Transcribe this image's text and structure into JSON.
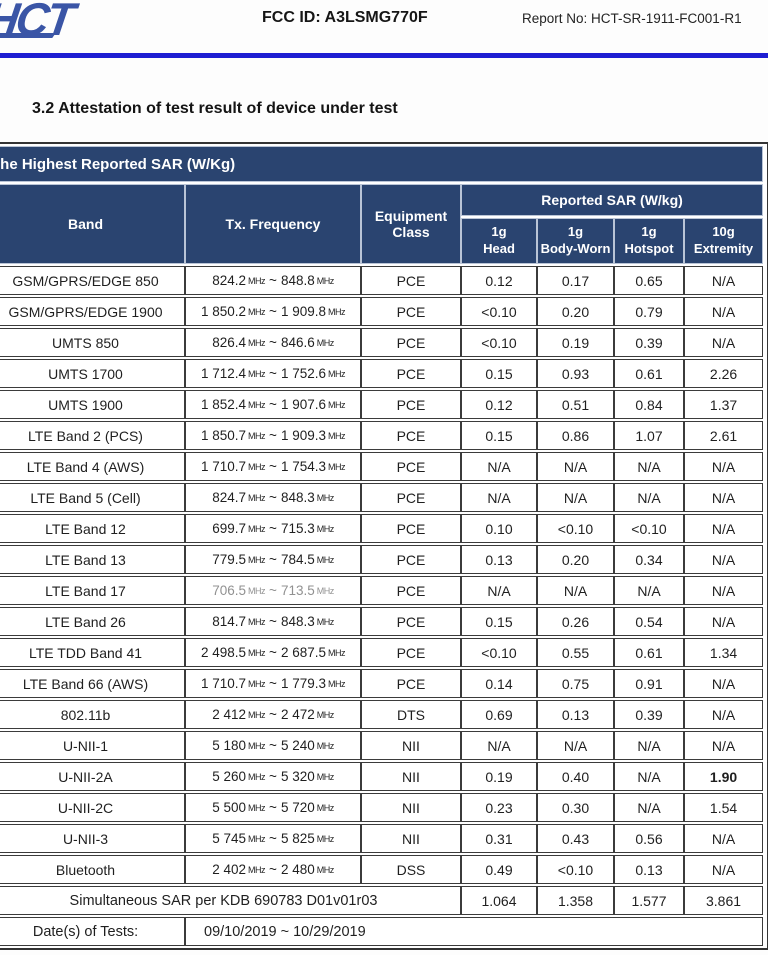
{
  "header": {
    "logo_text": "HCT",
    "fcc_id_label": "FCC ID: A3LSMG770F",
    "report_no_label": "Report No: HCT-SR-1911-FC001-R1"
  },
  "section": {
    "heading": "3.2 Attestation of test result of device under test"
  },
  "colors": {
    "table_header_navy": "#2a4470",
    "rule_blue": "#1e1ed2",
    "logo_blue": "#3a55a6"
  },
  "table": {
    "title": "The Highest Reported SAR (W/Kg)",
    "headers": {
      "band": "Band",
      "tx_frequency": "Tx. Frequency",
      "equipment_class": "Equipment Class",
      "reported_sar_group": "Reported SAR (W/kg)",
      "sub_columns": [
        {
          "line1": "1g",
          "line2": "Head"
        },
        {
          "line1": "1g",
          "line2": "Body-Worn"
        },
        {
          "line1": "1g",
          "line2": "Hotspot"
        },
        {
          "line1": "10g",
          "line2": "Extremity"
        }
      ]
    },
    "units": {
      "frequency_unit": "MHz",
      "range_separator": "~"
    },
    "rows": [
      {
        "band": "GSM/GPRS/EDGE 850",
        "freq_low": "824.2",
        "freq_high": "848.8",
        "equipment": "PCE",
        "head": "0.12",
        "body_worn": "0.17",
        "hotspot": "0.65",
        "extremity": "N/A"
      },
      {
        "band": "GSM/GPRS/EDGE 1900",
        "freq_low": "1 850.2",
        "freq_high": "1 909.8",
        "equipment": "PCE",
        "head": "<0.10",
        "body_worn": "0.20",
        "hotspot": "0.79",
        "extremity": "N/A"
      },
      {
        "band": "UMTS 850",
        "freq_low": "826.4",
        "freq_high": "846.6",
        "equipment": "PCE",
        "head": "<0.10",
        "body_worn": "0.19",
        "hotspot": "0.39",
        "extremity": "N/A"
      },
      {
        "band": "UMTS 1700",
        "freq_low": "1 712.4",
        "freq_high": "1 752.6",
        "equipment": "PCE",
        "head": "0.15",
        "body_worn": "0.93",
        "hotspot": "0.61",
        "extremity": "2.26"
      },
      {
        "band": "UMTS 1900",
        "freq_low": "1 852.4",
        "freq_high": "1 907.6",
        "equipment": "PCE",
        "head": "0.12",
        "body_worn": "0.51",
        "hotspot": "0.84",
        "extremity": "1.37"
      },
      {
        "band": "LTE Band 2 (PCS)",
        "freq_low": "1 850.7",
        "freq_high": "1 909.3",
        "equipment": "PCE",
        "head": "0.15",
        "body_worn": "0.86",
        "hotspot": "1.07",
        "extremity": "2.61"
      },
      {
        "band": "LTE Band 4 (AWS)",
        "freq_low": "1 710.7",
        "freq_high": "1 754.3",
        "equipment": "PCE",
        "head": "N/A",
        "body_worn": "N/A",
        "hotspot": "N/A",
        "extremity": "N/A"
      },
      {
        "band": "LTE Band 5 (Cell)",
        "freq_low": "824.7",
        "freq_high": "848.3",
        "equipment": "PCE",
        "head": "N/A",
        "body_worn": "N/A",
        "hotspot": "N/A",
        "extremity": "N/A"
      },
      {
        "band": "LTE Band 12",
        "freq_low": "699.7",
        "freq_high": "715.3",
        "equipment": "PCE",
        "head": "0.10",
        "body_worn": "<0.10",
        "hotspot": "<0.10",
        "extremity": "N/A"
      },
      {
        "band": "LTE Band 13",
        "freq_low": "779.5",
        "freq_high": "784.5",
        "equipment": "PCE",
        "head": "0.13",
        "body_worn": "0.20",
        "hotspot": "0.34",
        "extremity": "N/A"
      },
      {
        "band": "LTE Band 17",
        "freq_low": "706.5",
        "freq_high": "713.5",
        "equipment": "PCE",
        "head": "N/A",
        "body_worn": "N/A",
        "hotspot": "N/A",
        "extremity": "N/A",
        "freq_muted": true
      },
      {
        "band": "LTE Band 26",
        "freq_low": "814.7",
        "freq_high": "848.3",
        "equipment": "PCE",
        "head": "0.15",
        "body_worn": "0.26",
        "hotspot": "0.54",
        "extremity": "N/A"
      },
      {
        "band": "LTE TDD Band 41",
        "freq_low": "2 498.5",
        "freq_high": "2 687.5",
        "equipment": "PCE",
        "head": "<0.10",
        "body_worn": "0.55",
        "hotspot": "0.61",
        "extremity": "1.34"
      },
      {
        "band": "LTE Band 66 (AWS)",
        "freq_low": "1 710.7",
        "freq_high": "1 779.3",
        "equipment": "PCE",
        "head": "0.14",
        "body_worn": "0.75",
        "hotspot": "0.91",
        "extremity": "N/A"
      },
      {
        "band": "802.11b",
        "freq_low": "2 412",
        "freq_high": "2 472",
        "equipment": "DTS",
        "head": "0.69",
        "body_worn": "0.13",
        "hotspot": "0.39",
        "extremity": "N/A"
      },
      {
        "band": "U-NII-1",
        "freq_low": "5 180",
        "freq_high": "5 240",
        "equipment": "NII",
        "head": "N/A",
        "body_worn": "N/A",
        "hotspot": "N/A",
        "extremity": "N/A"
      },
      {
        "band": "U-NII-2A",
        "freq_low": "5 260",
        "freq_high": "5 320",
        "equipment": "NII",
        "head": "0.19",
        "body_worn": "0.40",
        "hotspot": "N/A",
        "extremity": "1.90",
        "extremity_bold": true
      },
      {
        "band": "U-NII-2C",
        "freq_low": "5 500",
        "freq_high": "5 720",
        "equipment": "NII",
        "head": "0.23",
        "body_worn": "0.30",
        "hotspot": "N/A",
        "extremity": "1.54"
      },
      {
        "band": "U-NII-3",
        "freq_low": "5 745",
        "freq_high": "5 825",
        "equipment": "NII",
        "head": "0.31",
        "body_worn": "0.43",
        "hotspot": "0.56",
        "extremity": "N/A"
      },
      {
        "band": "Bluetooth",
        "freq_low": "2 402",
        "freq_high": "2 480",
        "equipment": "DSS",
        "head": "0.49",
        "body_worn": "<0.10",
        "hotspot": "0.13",
        "extremity": "N/A"
      }
    ],
    "simultaneous_row": {
      "label": "Simultaneous SAR per KDB 690783 D01v01r03",
      "head": "1.064",
      "body_worn": "1.358",
      "hotspot": "1.577",
      "extremity": "3.861"
    },
    "dates_row": {
      "label": "Date(s) of Tests:",
      "value": "09/10/2019 ~ 10/29/2019"
    }
  }
}
